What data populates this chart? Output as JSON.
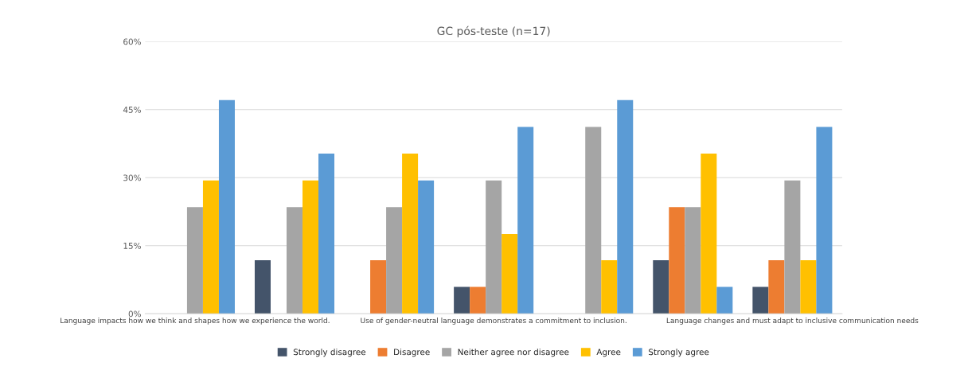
{
  "chart_data": {
    "type": "bar",
    "title": "GC pós-teste (n=17)",
    "categories": [
      "Language impacts how we think and shapes how we experience the world.",
      null,
      null,
      "Use of gender-neutral language demonstrates a commitment to inclusion.",
      null,
      null,
      "Language changes and must adapt to inclusive communication needs"
    ],
    "series": [
      {
        "name": "Strongly disagree",
        "color": "#44546a",
        "values": [
          0,
          11.8,
          0,
          5.9,
          0,
          11.8,
          5.9
        ]
      },
      {
        "name": "Disagree",
        "color": "#ed7d31",
        "values": [
          0,
          0,
          11.8,
          5.9,
          0,
          23.5,
          11.8
        ]
      },
      {
        "name": "Neither agree nor disagree",
        "color": "#a5a5a5",
        "values": [
          23.5,
          23.5,
          23.5,
          29.4,
          41.2,
          23.5,
          29.4
        ]
      },
      {
        "name": "Agree",
        "color": "#ffc000",
        "values": [
          29.4,
          29.4,
          35.3,
          17.6,
          11.8,
          35.3,
          11.8
        ]
      },
      {
        "name": "Strongly agree",
        "color": "#5b9bd5",
        "values": [
          47.1,
          35.3,
          29.4,
          41.2,
          47.1,
          5.9,
          41.2
        ]
      }
    ],
    "ylim": [
      0,
      60
    ],
    "yticks": [
      {
        "value": 0,
        "label": "0%"
      },
      {
        "value": 15,
        "label": "15%"
      },
      {
        "value": 30,
        "label": "30%"
      },
      {
        "value": 45,
        "label": "45%"
      },
      {
        "value": 60,
        "label": "60%"
      }
    ],
    "grid": "y",
    "legend": "bottom"
  }
}
